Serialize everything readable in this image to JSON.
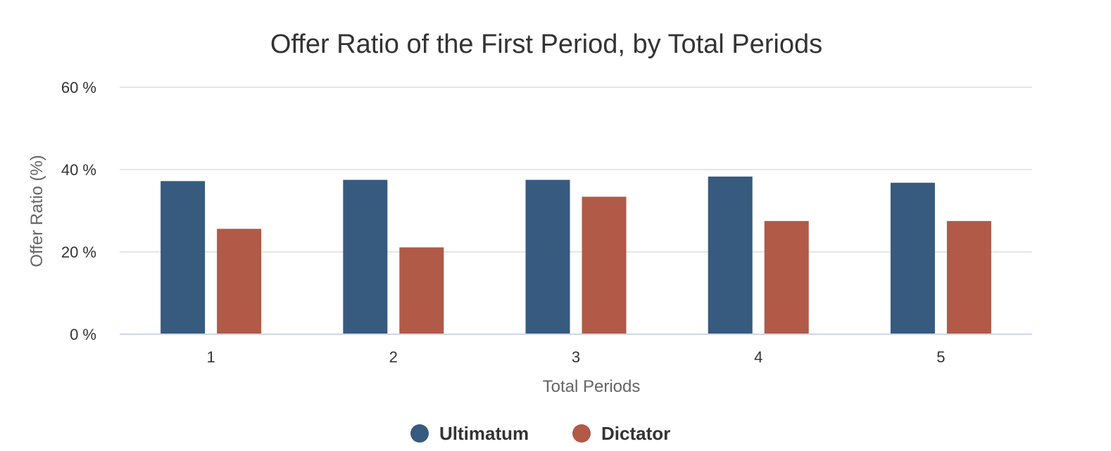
{
  "chart_data": {
    "type": "bar",
    "title": "Offer Ratio of the First Period, by Total Periods",
    "xlabel": "Total Periods",
    "ylabel": "Offer Ratio (%)",
    "categories": [
      "1",
      "2",
      "3",
      "4",
      "5"
    ],
    "ylim": [
      0,
      60
    ],
    "yticks": [
      0,
      20,
      40,
      60
    ],
    "ytick_suffix": " %",
    "grid": true,
    "legend_position": "bottom-center",
    "series": [
      {
        "name": "Ultimatum",
        "color": "#375a7f",
        "values": [
          37.2,
          37.5,
          37.5,
          38.3,
          36.8
        ]
      },
      {
        "name": "Dictator",
        "color": "#b05a47",
        "values": [
          25.6,
          21.1,
          33.4,
          27.5,
          27.5
        ]
      }
    ]
  }
}
